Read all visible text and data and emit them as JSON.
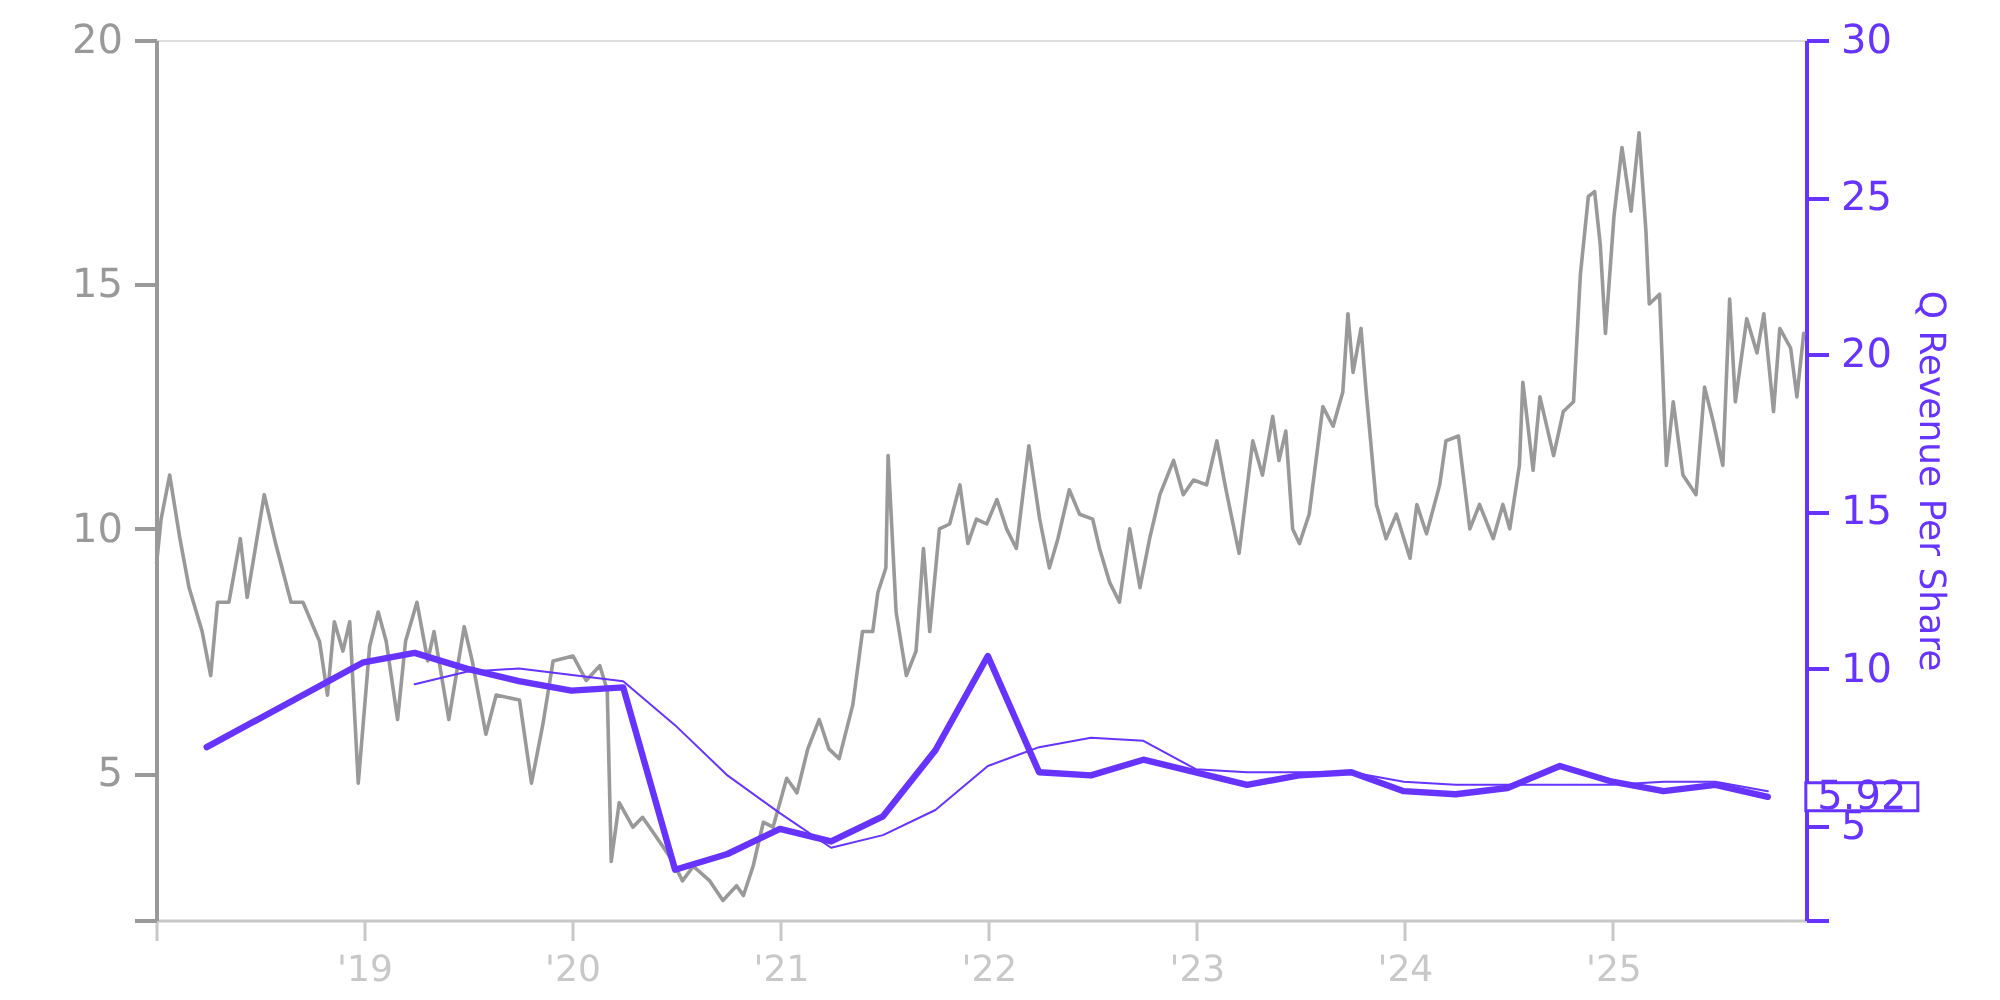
{
  "chart_data": {
    "type": "line",
    "y2label": "Q Revenue Per Share",
    "xlim": [
      "2018-01-01",
      "2025-12-06"
    ],
    "xticks": [
      {
        "value": "2018-01-01",
        "label": null
      },
      {
        "value": "2019-01-01",
        "label": "'19"
      },
      {
        "value": "2020-01-01",
        "label": "'20"
      },
      {
        "value": "2021-01-01",
        "label": "'21"
      },
      {
        "value": "2022-01-01",
        "label": "'22"
      },
      {
        "value": "2023-01-01",
        "label": "'23"
      },
      {
        "value": "2024-01-01",
        "label": "'24"
      },
      {
        "value": "2025-01-01",
        "label": "'25"
      }
    ],
    "ylim": [
      2,
      20
    ],
    "yticks": [
      {
        "value": 2,
        "label": null
      },
      5,
      10,
      15,
      20
    ],
    "y2lim": [
      2,
      30
    ],
    "y2ticks": [
      {
        "value": 2,
        "label": null
      },
      5,
      10,
      15,
      20,
      25,
      30
    ],
    "series": [
      {
        "color": "#999999",
        "x": [
          "2018-01-02",
          "2018-01-10",
          "2018-01-25",
          "2018-02-12",
          "2018-02-28",
          "2018-03-23",
          "2018-04-07",
          "2018-04-19",
          "2018-05-09",
          "2018-05-29",
          "2018-06-10",
          "2018-07-10",
          "2018-07-30",
          "2018-08-26",
          "2018-09-16",
          "2018-10-15",
          "2018-10-29",
          "2018-11-10",
          "2018-11-25",
          "2018-12-07",
          "2018-12-22",
          "2019-01-11",
          "2019-01-26",
          "2019-02-09",
          "2019-03-01",
          "2019-03-15",
          "2019-04-04",
          "2019-04-23",
          "2019-05-04",
          "2019-05-30",
          "2019-06-26",
          "2019-07-10",
          "2019-08-03",
          "2019-08-21",
          "2019-10-01",
          "2019-10-22",
          "2019-11-11",
          "2019-11-29",
          "2020-01-03",
          "2020-01-26",
          "2020-02-19",
          "2020-03-03",
          "2020-03-10",
          "2020-03-24",
          "2020-04-17",
          "2020-05-04",
          "2020-06-03",
          "2020-06-26",
          "2020-07-13",
          "2020-08-01",
          "2020-08-30",
          "2020-09-22",
          "2020-10-16",
          "2020-10-28",
          "2020-11-14",
          "2020-12-02",
          "2020-12-19",
          "2021-01-12",
          "2021-01-30",
          "2021-02-18",
          "2021-03-10",
          "2021-03-27",
          "2021-04-14",
          "2021-05-08",
          "2021-05-25",
          "2021-06-12",
          "2021-06-21",
          "2021-07-05",
          "2021-07-09",
          "2021-07-23",
          "2021-08-10",
          "2021-08-27",
          "2021-09-09",
          "2021-09-20",
          "2021-10-07",
          "2021-10-25",
          "2021-11-12",
          "2021-11-26",
          "2021-12-11",
          "2021-12-29",
          "2022-01-16",
          "2022-02-02",
          "2022-02-19",
          "2022-03-13",
          "2022-04-01",
          "2022-04-18",
          "2022-05-03",
          "2022-05-23",
          "2022-06-10",
          "2022-07-03",
          "2022-07-15",
          "2022-08-02",
          "2022-08-19",
          "2022-09-06",
          "2022-09-24",
          "2022-10-11",
          "2022-10-29",
          "2022-11-22",
          "2022-12-09",
          "2022-12-27",
          "2023-01-19",
          "2023-02-06",
          "2023-02-22",
          "2023-03-17",
          "2023-04-10",
          "2023-04-27",
          "2023-05-15",
          "2023-05-26",
          "2023-06-07",
          "2023-06-19",
          "2023-07-01",
          "2023-07-18",
          "2023-08-11",
          "2023-08-29",
          "2023-09-15",
          "2023-09-24",
          "2023-10-03",
          "2023-10-17",
          "2023-10-26",
          "2023-11-13",
          "2023-11-30",
          "2023-12-18",
          "2024-01-11",
          "2024-01-23",
          "2024-02-09",
          "2024-03-03",
          "2024-03-14",
          "2024-04-05",
          "2024-04-25",
          "2024-05-12",
          "2024-06-05",
          "2024-06-22",
          "2024-07-04",
          "2024-07-21",
          "2024-07-27",
          "2024-08-14",
          "2024-08-26",
          "2024-09-19",
          "2024-10-06",
          "2024-10-24",
          "2024-11-05",
          "2024-11-19",
          "2024-11-30",
          "2024-12-10",
          "2024-12-19",
          "2025-01-03",
          "2025-01-17",
          "2025-02-02",
          "2025-02-16",
          "2025-02-28",
          "2025-03-06",
          "2025-03-24",
          "2025-04-05",
          "2025-04-17",
          "2025-05-04",
          "2025-05-27",
          "2025-06-11",
          "2025-06-26",
          "2025-07-13",
          "2025-07-25",
          "2025-08-04",
          "2025-08-24",
          "2025-09-11",
          "2025-09-23",
          "2025-10-10",
          "2025-10-21",
          "2025-11-09",
          "2025-11-20",
          "2025-12-02"
        ],
        "values": [
          9.3,
          10.2,
          11.1,
          9.8,
          8.8,
          7.9,
          7.0,
          8.5,
          8.5,
          9.8,
          8.6,
          10.7,
          9.7,
          8.5,
          8.5,
          7.7,
          6.6,
          8.1,
          7.5,
          8.1,
          4.8,
          7.6,
          8.3,
          7.7,
          6.1,
          7.7,
          8.5,
          7.3,
          7.9,
          6.1,
          8.0,
          7.3,
          5.8,
          6.6,
          6.5,
          4.8,
          6.0,
          7.3,
          7.4,
          6.9,
          7.2,
          6.7,
          3.2,
          4.4,
          3.9,
          4.1,
          3.6,
          3.2,
          2.8,
          3.1,
          2.8,
          2.4,
          2.7,
          2.5,
          3.1,
          4.0,
          3.9,
          4.9,
          4.6,
          5.5,
          6.1,
          5.5,
          5.3,
          6.4,
          7.9,
          7.9,
          8.7,
          9.2,
          11.5,
          8.3,
          7.0,
          7.5,
          9.6,
          7.9,
          10.0,
          10.1,
          10.9,
          9.7,
          10.2,
          10.1,
          10.6,
          10.0,
          9.6,
          11.7,
          10.2,
          9.2,
          9.8,
          10.8,
          10.3,
          10.2,
          9.6,
          8.9,
          8.5,
          10.0,
          8.8,
          9.8,
          10.7,
          11.4,
          10.7,
          11.0,
          10.9,
          11.8,
          10.8,
          9.5,
          11.8,
          11.1,
          12.3,
          11.4,
          12.0,
          10.0,
          9.7,
          10.3,
          12.5,
          12.1,
          12.8,
          14.4,
          13.2,
          14.1,
          12.8,
          10.5,
          9.8,
          10.3,
          9.4,
          10.5,
          9.9,
          10.9,
          11.8,
          11.9,
          10.0,
          10.5,
          9.8,
          10.5,
          10.0,
          11.3,
          13.0,
          11.2,
          12.7,
          11.5,
          12.4,
          12.6,
          15.2,
          16.8,
          16.9,
          15.8,
          14.0,
          16.4,
          17.8,
          16.5,
          18.1,
          16.1,
          14.6,
          14.8,
          11.3,
          12.6,
          11.1,
          10.7,
          12.9,
          12.2,
          11.3,
          14.7,
          12.6,
          14.3,
          13.6,
          14.4,
          12.4,
          14.1,
          13.7,
          12.7,
          14.0
        ]
      },
      {
        "color": "#6633ff",
        "axis": "y2",
        "x": [
          "2018-03-31",
          "2018-12-31",
          "2019-03-31",
          "2019-06-30",
          "2019-09-30",
          "2019-12-31",
          "2020-03-31",
          "2020-06-30",
          "2020-09-30",
          "2020-12-31",
          "2021-03-31",
          "2021-06-30",
          "2021-09-30",
          "2021-12-31",
          "2022-03-31",
          "2022-06-30",
          "2022-09-30",
          "2022-12-31",
          "2023-03-31",
          "2023-06-30",
          "2023-09-30",
          "2023-12-31",
          "2024-03-31",
          "2024-06-30",
          "2024-09-30",
          "2024-12-31",
          "2025-03-31",
          "2025-06-30",
          "2025-09-30"
        ],
        "values": [
          7.5,
          10.2,
          10.5,
          10.0,
          9.6,
          9.3,
          9.4,
          3.6,
          4.1,
          4.9,
          4.5,
          5.3,
          7.4,
          10.4,
          6.7,
          6.6,
          7.1,
          6.7,
          6.3,
          6.6,
          6.7,
          6.1,
          6.0,
          6.2,
          6.9,
          6.4,
          6.1,
          6.3,
          5.92
        ],
        "value_labels": [
          null,
          null,
          null,
          null,
          null,
          null,
          null,
          null,
          null,
          null,
          null,
          null,
          null,
          null,
          null,
          null,
          null,
          null,
          null,
          null,
          null,
          null,
          null,
          null,
          null,
          null,
          null,
          null,
          "5.92"
        ]
      },
      {
        "color": "#6633ff",
        "axis": "y2",
        "x": [
          "2019-03-31",
          "2019-06-30",
          "2019-09-30",
          "2020-03-31",
          "2020-06-30",
          "2020-09-30",
          "2020-12-31",
          "2021-03-31",
          "2021-06-30",
          "2021-09-30",
          "2021-12-31",
          "2022-03-31",
          "2022-06-30",
          "2022-09-30",
          "2022-12-31",
          "2023-03-31",
          "2023-06-30",
          "2023-09-30",
          "2023-12-31",
          "2024-03-31",
          "2024-06-30",
          "2024-09-30",
          "2024-12-31",
          "2025-03-31",
          "2025-06-30",
          "2025-09-30"
        ],
        "values": [
          9.5,
          9.9,
          10.0,
          9.6,
          8.2,
          6.6,
          5.4,
          4.3,
          4.7,
          5.5,
          6.9,
          7.5,
          7.8,
          7.7,
          6.8,
          6.7,
          6.7,
          6.7,
          6.4,
          6.3,
          6.3,
          6.3,
          6.3,
          6.4,
          6.4,
          6.1
        ]
      }
    ]
  }
}
